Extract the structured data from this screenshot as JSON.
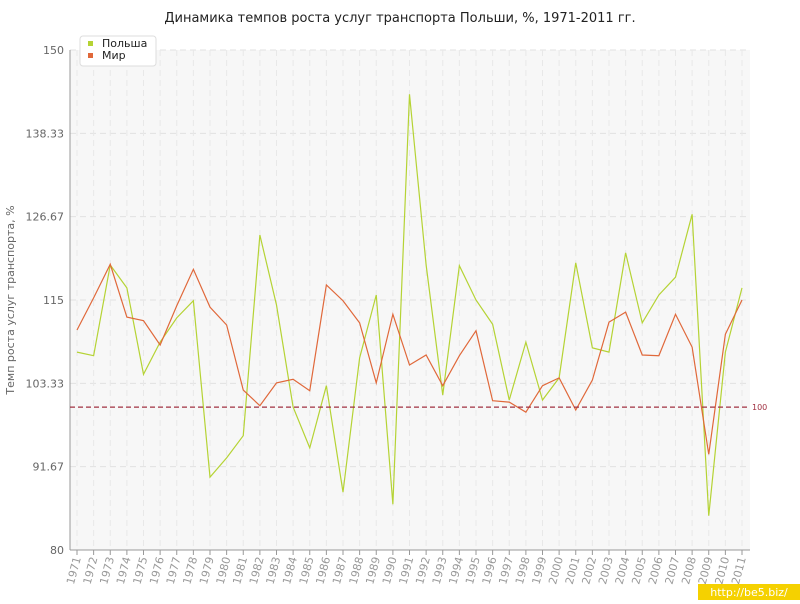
{
  "chart_data": {
    "type": "line",
    "title": "Динамика темпов роста услуг транспорта Польши, %, 1971-2011 гг.",
    "y_label": "Темп роста услуг транспорта, %",
    "categories": [
      "1971",
      "1972",
      "1973",
      "1974",
      "1975",
      "1976",
      "1977",
      "1978",
      "1979",
      "1980",
      "1981",
      "1982",
      "1983",
      "1984",
      "1985",
      "1986",
      "1987",
      "1988",
      "1989",
      "1990",
      "1991",
      "1992",
      "1993",
      "1994",
      "1995",
      "1996",
      "1997",
      "1998",
      "1999",
      "2000",
      "2001",
      "2002",
      "2003",
      "2004",
      "2005",
      "2006",
      "2007",
      "2008",
      "2009",
      "2010",
      "2011"
    ],
    "series": [
      {
        "name": "Польша",
        "color": "#b5d334",
        "values": [
          107.7,
          107.2,
          119.9,
          116.7,
          104.6,
          109.1,
          112.5,
          114.9,
          90.2,
          92.9,
          96.0,
          124.1,
          114.3,
          100.0,
          94.3,
          103.0,
          88.1,
          106.9,
          115.7,
          86.4,
          143.8,
          119.9,
          101.7,
          119.8,
          115.0,
          111.6,
          101.0,
          109.1,
          101.0,
          104.1,
          120.2,
          108.3,
          107.7,
          121.6,
          111.8,
          115.7,
          118.2,
          127.0,
          84.8,
          107.7,
          116.7
        ]
      },
      {
        "name": "Мир",
        "color": "#e0683a",
        "values": [
          110.8,
          115.3,
          120.0,
          112.6,
          112.1,
          108.7,
          114.2,
          119.3,
          114.0,
          111.5,
          102.4,
          100.2,
          103.4,
          103.9,
          102.3,
          117.1,
          114.9,
          111.8,
          103.4,
          113.0,
          105.9,
          107.3,
          103.0,
          107.2,
          110.7,
          100.9,
          100.7,
          99.3,
          103.0,
          104.1,
          99.6,
          103.8,
          111.9,
          113.3,
          107.3,
          107.2,
          113.0,
          108.4,
          93.4,
          110.2,
          115.0
        ]
      }
    ],
    "ylim": [
      80,
      150
    ],
    "yticks": [
      80,
      91.67,
      103.33,
      115,
      126.67,
      138.33,
      150
    ],
    "reference_line": {
      "value": 100,
      "label": "100",
      "color": "#a03040"
    },
    "grid": true,
    "legend": "top-left",
    "watermark": "http://be5.biz/"
  }
}
